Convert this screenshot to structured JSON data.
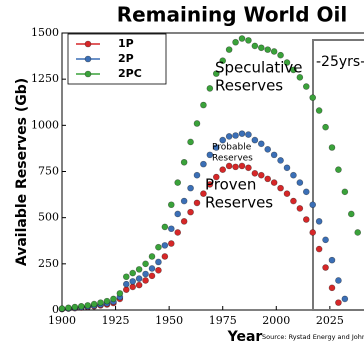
{
  "chart_data": {
    "type": "scatter",
    "title": "Remaining World Oil",
    "x_label": "Year",
    "y_label": "Available Reserves (Gb)",
    "source": "Source: Rystad Energy and John Peach",
    "annotations": [
      [
        "Speculative",
        "Reserves"
      ],
      [
        "Probable",
        "Reserves"
      ],
      [
        "Proven",
        "Reserves"
      ],
      "-25yrs-|"
    ],
    "x": [
      1900,
      1903,
      1906,
      1909,
      1912,
      1915,
      1918,
      1921,
      1924,
      1927,
      1930,
      1933,
      1936,
      1939,
      1942,
      1945,
      1948,
      1951,
      1954,
      1957,
      1960,
      1963,
      1966,
      1969,
      1972,
      1975,
      1978,
      1981,
      1984,
      1987,
      1990,
      1993,
      1996,
      1999,
      2002,
      2005,
      2008,
      2011,
      2014,
      2017,
      2020,
      2023,
      2026,
      2029,
      2032,
      2035,
      2038
    ],
    "series": [
      {
        "name": "1P",
        "color": "#d62728",
        "values": [
          5,
          8,
          10,
          13,
          16,
          20,
          25,
          30,
          38,
          60,
          110,
          125,
          135,
          160,
          185,
          215,
          290,
          360,
          420,
          480,
          530,
          580,
          630,
          680,
          720,
          760,
          780,
          775,
          780,
          770,
          740,
          730,
          710,
          690,
          660,
          630,
          590,
          550,
          490,
          420,
          330,
          230,
          120,
          40,
          null,
          null,
          null
        ]
      },
      {
        "name": "2P",
        "color": "#3b6fb6",
        "values": [
          6,
          9,
          12,
          15,
          19,
          24,
          30,
          36,
          45,
          70,
          140,
          155,
          170,
          195,
          225,
          260,
          350,
          440,
          520,
          590,
          660,
          730,
          790,
          840,
          880,
          920,
          940,
          945,
          955,
          950,
          920,
          900,
          870,
          840,
          810,
          770,
          730,
          690,
          640,
          570,
          480,
          380,
          270,
          160,
          60,
          null,
          null
        ]
      },
      {
        "name": "2PC",
        "color": "#3aa23a",
        "values": [
          8,
          12,
          16,
          20,
          25,
          32,
          40,
          48,
          60,
          90,
          180,
          200,
          220,
          250,
          290,
          340,
          450,
          570,
          690,
          800,
          910,
          1010,
          1110,
          1200,
          1280,
          1350,
          1410,
          1450,
          1470,
          1460,
          1430,
          1420,
          1410,
          1400,
          1380,
          1340,
          1300,
          1260,
          1210,
          1150,
          1080,
          990,
          880,
          760,
          640,
          520,
          420
        ]
      }
    ],
    "xlim": [
      1900,
      2040
    ],
    "xticks": [
      1900,
      1925,
      1950,
      1975,
      2000,
      2025
    ],
    "ylim": [
      0,
      1500
    ],
    "yticks": [
      0,
      250,
      500,
      750,
      1000,
      1250,
      1500
    ],
    "legend": "upper left"
  }
}
